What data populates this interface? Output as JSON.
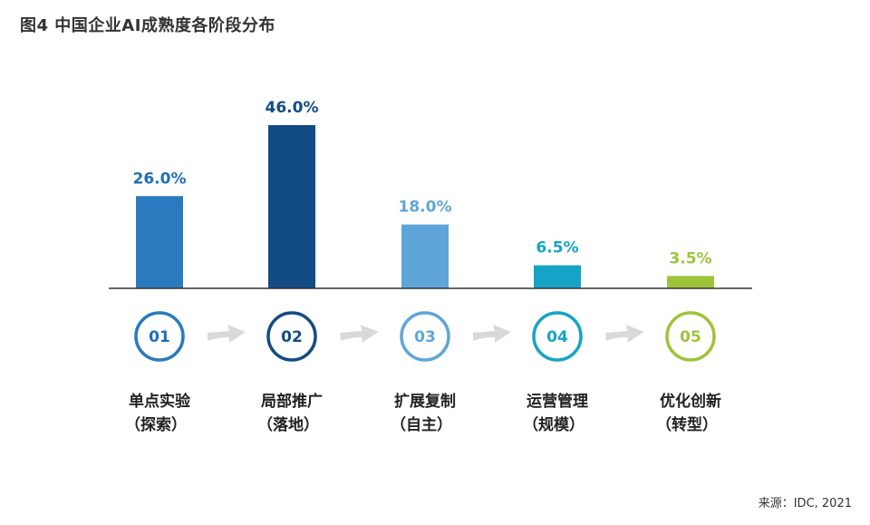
{
  "title": "图4 中国企业AI成熟度各阶段分布",
  "source": "来源：IDC, 2021",
  "chart_data": {
    "type": "bar",
    "categories": [
      "单点实验（探索）",
      "局部推广（落地）",
      "扩展复制（自主）",
      "运营管理（规模）",
      "优化创新（转型）"
    ],
    "values": [
      26.0,
      46.0,
      18.0,
      6.5,
      3.5
    ],
    "value_labels": [
      "26.0%",
      "46.0%",
      "18.0%",
      "6.5%",
      "3.5%"
    ],
    "stage_numbers": [
      "01",
      "02",
      "03",
      "04",
      "05"
    ],
    "stage_names": [
      "单点实验",
      "局部推广",
      "扩展复制",
      "运营管理",
      "优化创新"
    ],
    "stage_subtitles": [
      "（探索）",
      "（落地）",
      "（自主）",
      "（规模）",
      "（转型）"
    ],
    "colors": [
      "#2a7abf",
      "#134b84",
      "#5ea6da",
      "#15a4c6",
      "#9ec43a"
    ],
    "label_colors": [
      "#1f6fb5",
      "#134b84",
      "#5ea6da",
      "#15a4c6",
      "#9ec43a"
    ],
    "arrow_color": "#d9d9d9",
    "ylim": [
      0,
      50
    ]
  }
}
